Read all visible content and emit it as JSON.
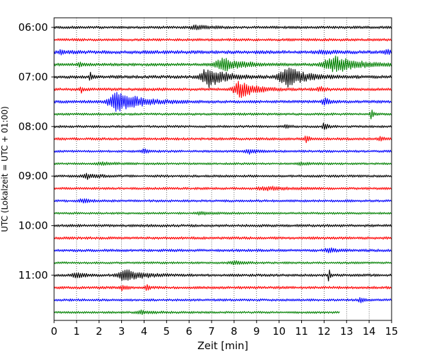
{
  "chart_data": {
    "type": "line",
    "subtype": "helicorder",
    "title": "",
    "xlabel": "Zeit  [min]",
    "ylabel": "UTC (Lokalzeit = UTC + 01:00)",
    "xlim": [
      0,
      15
    ],
    "x_ticks": [
      "0",
      "1",
      "2",
      "3",
      "4",
      "5",
      "6",
      "7",
      "8",
      "9",
      "10",
      "11",
      "12",
      "13",
      "14",
      "15"
    ],
    "y_tick_labels": [
      "06:00",
      "07:00",
      "08:00",
      "09:00",
      "10:00",
      "11:00"
    ],
    "grid": "vertical dotted at each minute",
    "line_minutes": 15,
    "trace_colors": [
      "#000000",
      "#ff0000",
      "#0000ff",
      "#008000"
    ],
    "traces": [
      {
        "start": "06:00",
        "color": "#000000",
        "noise": 1.0,
        "events": [
          [
            6.3,
            2.5,
            0.5
          ]
        ]
      },
      {
        "start": "06:15",
        "color": "#ff0000",
        "noise": 1.0,
        "events": []
      },
      {
        "start": "06:30",
        "color": "#0000ff",
        "noise": 1.3,
        "events": [
          [
            0.3,
            2,
            0.3
          ],
          [
            12.0,
            2,
            0.4
          ],
          [
            14.8,
            2,
            0.3
          ]
        ]
      },
      {
        "start": "06:45",
        "color": "#008000",
        "noise": 1.1,
        "events": [
          [
            1.1,
            3,
            0.1
          ],
          [
            7.6,
            8,
            0.8
          ],
          [
            12.5,
            10,
            1.0
          ]
        ]
      },
      {
        "start": "07:00",
        "color": "#000000",
        "noise": 1.2,
        "events": [
          [
            1.6,
            6,
            0.1
          ],
          [
            6.9,
            12,
            0.7
          ],
          [
            10.4,
            13,
            0.7
          ]
        ]
      },
      {
        "start": "07:15",
        "color": "#ff0000",
        "noise": 1.1,
        "events": [
          [
            1.2,
            4,
            0.1
          ],
          [
            8.3,
            10,
            0.6
          ],
          [
            11.8,
            3,
            0.2
          ]
        ]
      },
      {
        "start": "07:30",
        "color": "#0000ff",
        "noise": 1.1,
        "events": [
          [
            2.9,
            13,
            0.9
          ],
          [
            12.0,
            5,
            0.2
          ]
        ]
      },
      {
        "start": "07:45",
        "color": "#008000",
        "noise": 0.9,
        "events": [
          [
            14.1,
            6,
            0.1
          ]
        ]
      },
      {
        "start": "08:00",
        "color": "#000000",
        "noise": 0.9,
        "events": [
          [
            12.0,
            5,
            0.15
          ],
          [
            10.3,
            2,
            0.2
          ]
        ]
      },
      {
        "start": "08:15",
        "color": "#ff0000",
        "noise": 1.0,
        "events": [
          [
            11.2,
            4,
            0.15
          ],
          [
            14.5,
            3,
            0.15
          ]
        ]
      },
      {
        "start": "08:30",
        "color": "#0000ff",
        "noise": 0.9,
        "events": [
          [
            4.0,
            2.5,
            0.2
          ],
          [
            8.7,
            2.5,
            0.5
          ]
        ]
      },
      {
        "start": "08:45",
        "color": "#008000",
        "noise": 0.8,
        "events": [
          [
            2.2,
            1.5,
            0.6
          ],
          [
            11.0,
            1.2,
            0.5
          ]
        ]
      },
      {
        "start": "09:00",
        "color": "#000000",
        "noise": 0.9,
        "events": [
          [
            1.5,
            3,
            0.5
          ]
        ]
      },
      {
        "start": "09:15",
        "color": "#ff0000",
        "noise": 0.9,
        "events": [
          [
            9.5,
            2,
            0.8
          ]
        ]
      },
      {
        "start": "09:30",
        "color": "#0000ff",
        "noise": 0.9,
        "events": [
          [
            1.3,
            2,
            0.4
          ]
        ]
      },
      {
        "start": "09:45",
        "color": "#008000",
        "noise": 0.8,
        "events": [
          [
            6.5,
            2,
            0.4
          ]
        ]
      },
      {
        "start": "10:00",
        "color": "#000000",
        "noise": 1.0,
        "events": []
      },
      {
        "start": "10:15",
        "color": "#ff0000",
        "noise": 1.0,
        "events": []
      },
      {
        "start": "10:30",
        "color": "#0000ff",
        "noise": 1.0,
        "events": [
          [
            12.2,
            2.5,
            0.4
          ]
        ]
      },
      {
        "start": "10:45",
        "color": "#008000",
        "noise": 0.8,
        "events": [
          [
            8.0,
            2,
            0.5
          ]
        ]
      },
      {
        "start": "11:00",
        "color": "#000000",
        "noise": 1.0,
        "events": [
          [
            1.0,
            3,
            0.4
          ],
          [
            3.2,
            9,
            0.6
          ],
          [
            12.2,
            14,
            0.05
          ]
        ]
      },
      {
        "start": "11:15",
        "color": "#ff0000",
        "noise": 1.0,
        "events": [
          [
            3.0,
            3,
            0.2
          ],
          [
            4.1,
            6,
            0.1
          ]
        ]
      },
      {
        "start": "11:30",
        "color": "#0000ff",
        "noise": 0.9,
        "events": [
          [
            13.6,
            4,
            0.15
          ]
        ]
      },
      {
        "start": "11:45",
        "color": "#008000",
        "noise": 0.8,
        "events": [
          [
            3.9,
            2,
            0.5
          ]
        ],
        "end_min": 12.7
      }
    ]
  }
}
